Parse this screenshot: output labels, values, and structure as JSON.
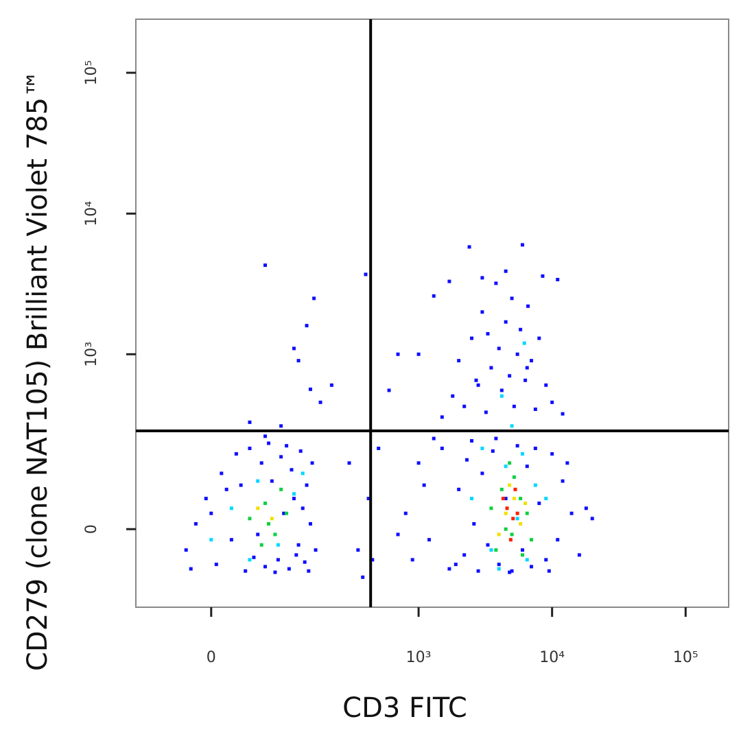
{
  "chart_data": {
    "type": "scatter",
    "xlabel": "CD3 FITC",
    "ylabel": "CD279 (clone NAT105)  Brilliant Violet 785™",
    "xscale": "asinh",
    "yscale": "asinh",
    "xlim": [
      -95,
      210000
    ],
    "ylim": [
      -190,
      240000
    ],
    "xticks": [
      0,
      {
        "value": 1000,
        "label": "10³"
      },
      {
        "value": 10000,
        "label": "10⁴"
      },
      {
        "value": 100000,
        "label": "10⁵"
      }
    ],
    "yticks": [
      0,
      {
        "value": 1000,
        "label": "10³"
      },
      {
        "value": 10000,
        "label": "10⁴"
      },
      {
        "value": 100000,
        "label": "10⁵"
      }
    ],
    "gates": {
      "x": 436,
      "y": 275
    },
    "series": [
      {
        "color": "#1010ff",
        "x": [
          -25,
          -15,
          -5,
          5,
          10,
          20,
          25,
          30,
          35,
          40,
          45,
          55,
          60,
          65,
          70,
          80,
          85,
          90,
          100,
          105,
          110,
          120,
          125,
          135,
          140,
          150,
          155,
          165,
          0,
          15,
          50,
          75,
          95,
          115,
          130,
          -20,
          60,
          85,
          40,
          145,
          120,
          140,
          160,
          110,
          150,
          180,
          220,
          60,
          400,
          300,
          350,
          420,
          380,
          500,
          450,
          800,
          900,
          1000,
          1200,
          1500,
          1700,
          2000,
          2200,
          2500,
          2800,
          3000,
          3300,
          3600,
          4000,
          4500,
          5000,
          5500,
          6000,
          6500,
          7000,
          8000,
          9000,
          10000,
          11000,
          12000,
          14000,
          16000,
          18000,
          1100,
          1900,
          2600,
          3800,
          4800,
          7500,
          9500,
          13000,
          20000,
          700,
          1300,
          2300,
          1500,
          1800,
          2000,
          2200,
          2500,
          2700,
          3000,
          3200,
          3500,
          3800,
          4000,
          4200,
          4500,
          4800,
          5000,
          5200,
          5500,
          5800,
          6000,
          6300,
          6600,
          7000,
          7500,
          8000,
          8500,
          9000,
          10000,
          11000,
          2400,
          3000,
          1000,
          1300,
          700,
          600,
          12000,
          1700,
          4500,
          6500,
          3300,
          2800
        ],
        "values": [
          -40,
          10,
          60,
          -70,
          120,
          -20,
          180,
          90,
          -85,
          200,
          -55,
          150,
          -75,
          220,
          100,
          -60,
          170,
          30,
          -80,
          130,
          60,
          -30,
          190,
          -65,
          90,
          10,
          150,
          -40,
          30,
          80,
          -10,
          -88,
          210,
          -50,
          40,
          -80,
          250,
          300,
          320,
          -85,
          900,
          1600,
          2500,
          1100,
          560,
          450,
          600,
          4300,
          3700,
          150,
          -40,
          60,
          -100,
          200,
          -60,
          30,
          -60,
          150,
          -20,
          200,
          -80,
          80,
          -50,
          230,
          -85,
          120,
          -30,
          190,
          -70,
          60,
          -85,
          210,
          -40,
          140,
          -75,
          50,
          -60,
          180,
          -20,
          100,
          30,
          -50,
          40,
          90,
          -70,
          10,
          240,
          -88,
          200,
          -85,
          150,
          20,
          -10,
          240,
          160,
          350,
          500,
          900,
          420,
          1300,
          650,
          2000,
          380,
          800,
          3200,
          1100,
          550,
          1700,
          700,
          2500,
          420,
          1000,
          1500,
          6000,
          650,
          2200,
          900,
          400,
          1300,
          3600,
          600,
          450,
          3400,
          5800,
          3500,
          1000,
          2600,
          1000,
          550,
          370,
          3300,
          3900,
          800,
          1400,
          600
        ]
      },
      {
        "color": "#00d8ff",
        "x": [
          20,
          50,
          80,
          110,
          40,
          130,
          0,
          2500,
          3500,
          4500,
          5500,
          6500,
          7500,
          3000,
          4000,
          6000,
          9000,
          5000,
          4200,
          6200
        ],
        "values": [
          40,
          100,
          -30,
          70,
          -60,
          120,
          -20,
          60,
          -40,
          140,
          20,
          -60,
          90,
          200,
          -80,
          180,
          60,
          300,
          500,
          1200
        ]
      },
      {
        "color": "#10d040",
        "x": [
          40,
          60,
          75,
          95,
          55,
          85,
          65,
          3500,
          4200,
          5000,
          5800,
          4500,
          6500,
          3800,
          5200,
          7000,
          4800,
          6000
        ],
        "values": [
          20,
          50,
          -10,
          30,
          -30,
          80,
          10,
          40,
          80,
          -10,
          60,
          0,
          30,
          -40,
          110,
          -20,
          150,
          -50
        ]
      },
      {
        "color": "#f0e000",
        "x": [
          70,
          50,
          4500,
          5200,
          4000,
          5800,
          4800,
          6300
        ],
        "values": [
          20,
          40,
          30,
          60,
          -10,
          10,
          90,
          50
        ]
      },
      {
        "color": "#ff2000",
        "x": [
          4600,
          5100,
          4300,
          5500,
          4900,
          5300
        ],
        "values": [
          40,
          20,
          60,
          30,
          -20,
          80
        ]
      }
    ]
  }
}
